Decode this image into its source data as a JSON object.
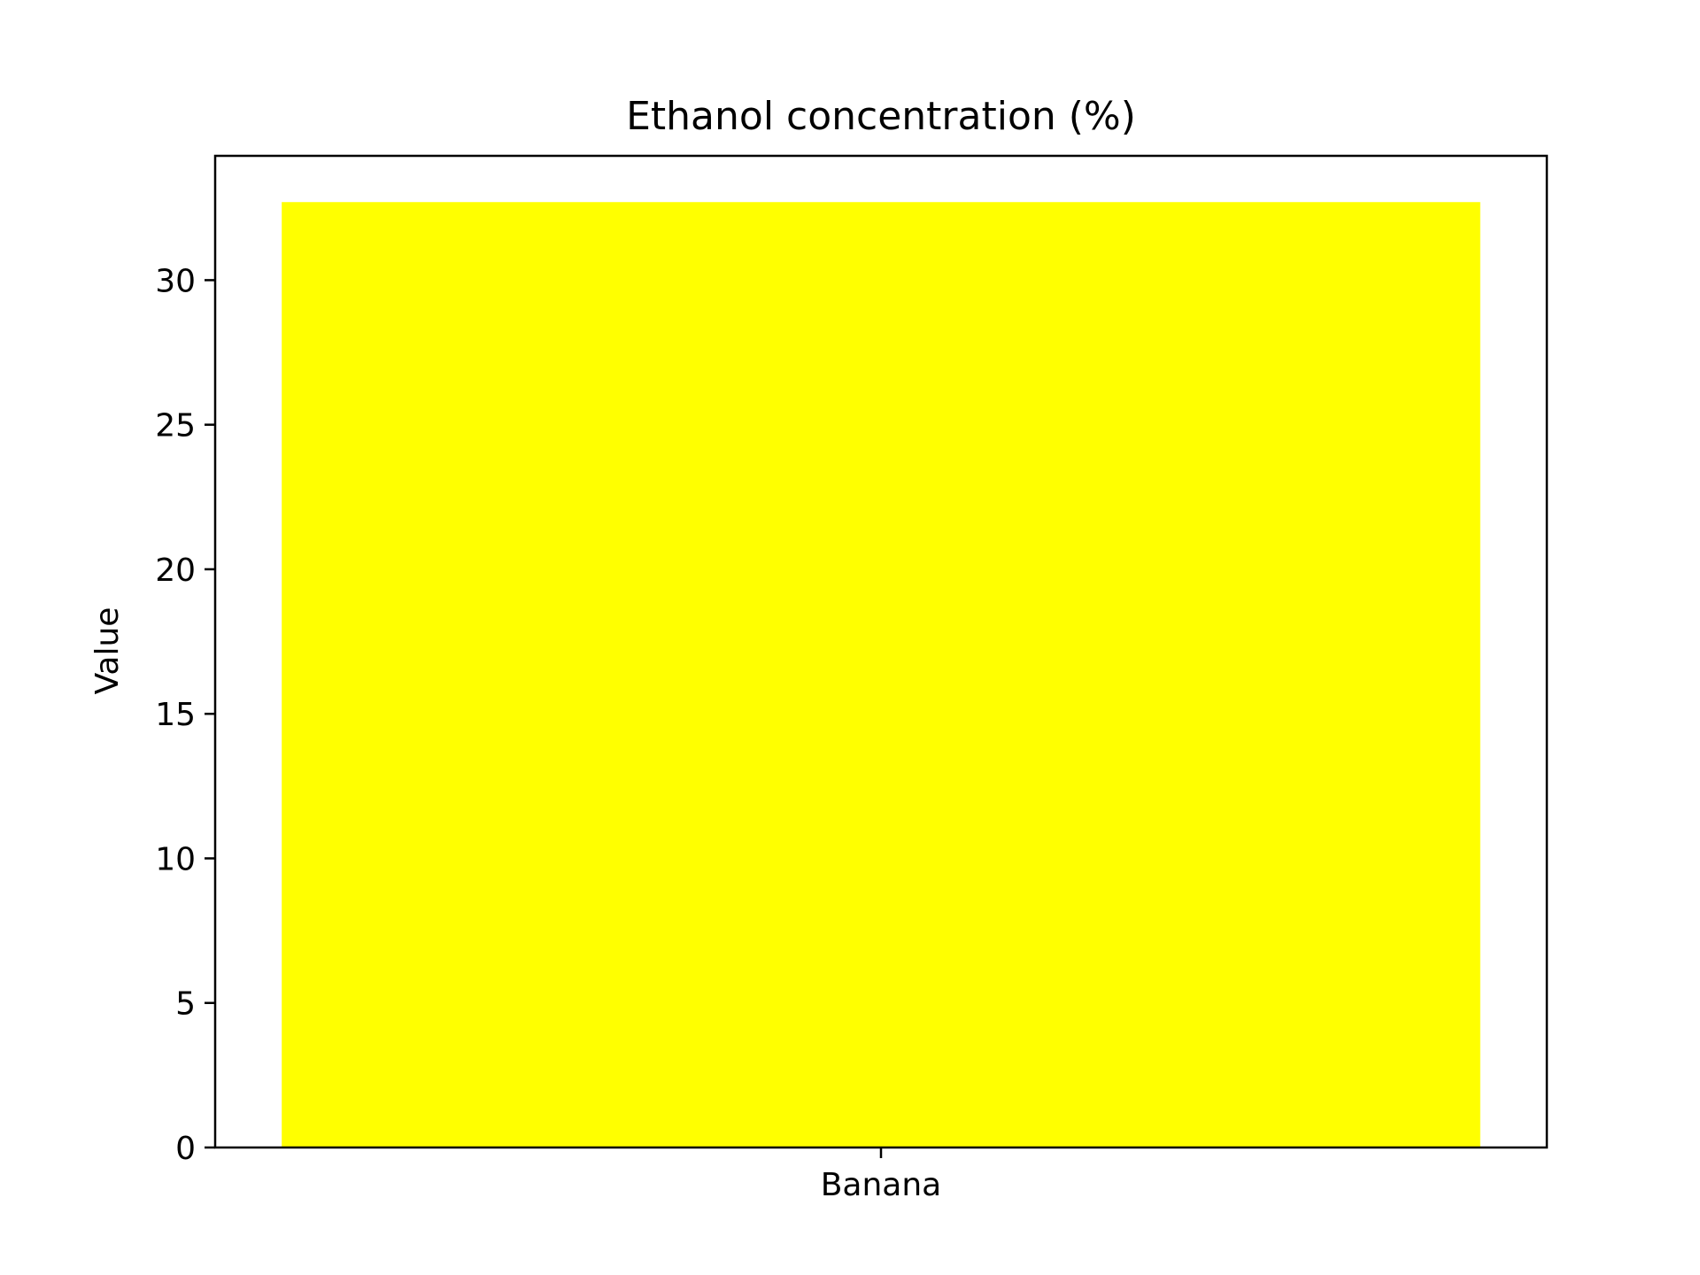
{
  "chart_data": {
    "type": "bar",
    "title": "Ethanol concentration (%)",
    "xlabel": "",
    "ylabel": "Value",
    "categories": [
      "Banana"
    ],
    "values": [
      32.7
    ],
    "ylim": [
      0,
      34.3
    ],
    "yticks": [
      0,
      5,
      10,
      15,
      20,
      25,
      30
    ],
    "grid": false,
    "legend": "none",
    "bar_color": "#ffff00"
  }
}
